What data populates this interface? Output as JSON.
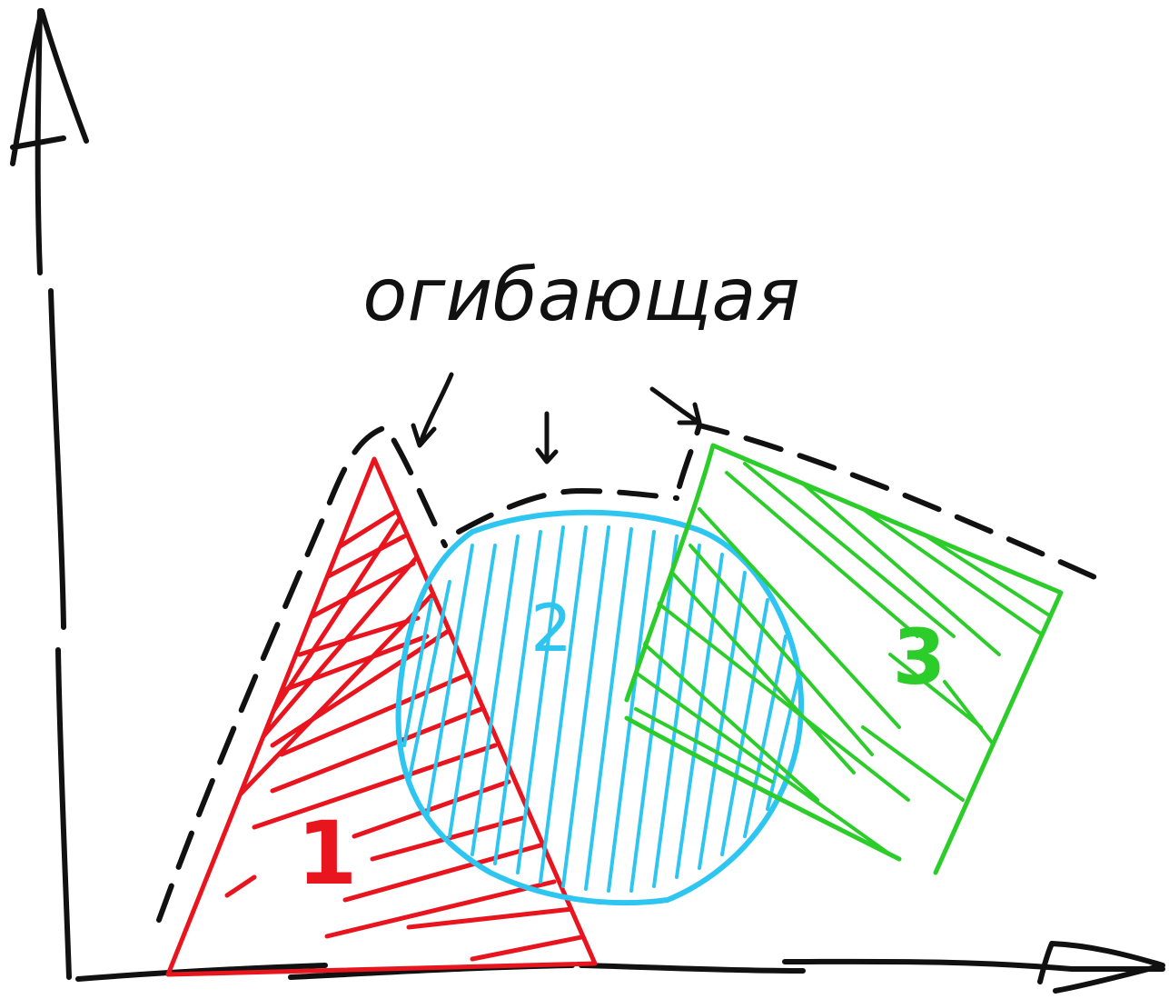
{
  "annotation": {
    "text": "огибающая"
  },
  "shapes": [
    {
      "id": "triangle",
      "label": "1",
      "color": "#e8141e"
    },
    {
      "id": "circle",
      "label": "2",
      "color": "#2ec6f0"
    },
    {
      "id": "polygon",
      "label": "3",
      "color": "#2ccc2a"
    }
  ],
  "colors": {
    "envelope": "#111111",
    "axes": "#111111"
  }
}
